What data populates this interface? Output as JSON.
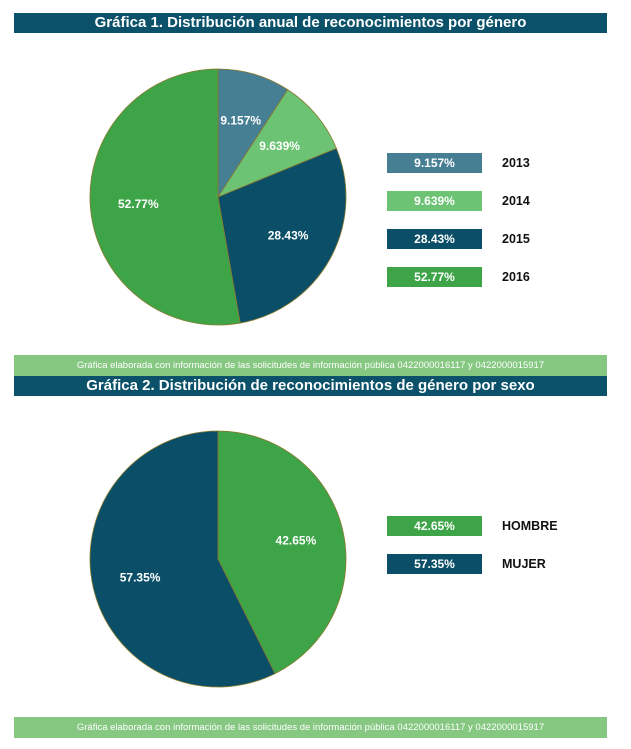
{
  "charts": {
    "chart1": {
      "title": "Gráfica 1. Distribución anual de reconocimientos por género",
      "note": "Gráfica elaborada con información de las solicitudes de información pública 0422000016117 y 0422000015917"
    },
    "chart2": {
      "title": "Gráfica 2. Distribución de reconocimientos de género por sexo",
      "note": "Gráfica elaborada con información de las solicitudes de información pública 0422000016117 y 0422000015917"
    }
  },
  "chart_data": [
    {
      "type": "pie",
      "title": "Gráfica 1. Distribución anual de reconocimientos por género",
      "categories": [
        "2013",
        "2014",
        "2015",
        "2016"
      ],
      "values": [
        9.157,
        9.639,
        28.43,
        52.77
      ],
      "labels": [
        "9.157%",
        "9.639%",
        "28.43%",
        "52.77%"
      ],
      "colors": [
        "#467f93",
        "#6cc373",
        "#0a4f67",
        "#3da447"
      ],
      "legend": "right"
    },
    {
      "type": "pie",
      "title": "Gráfica 2. Distribución de reconocimientos de género por sexo",
      "categories": [
        "HOMBRE",
        "MUJER"
      ],
      "values": [
        42.65,
        57.35
      ],
      "labels": [
        "42.65%",
        "57.35%"
      ],
      "colors": [
        "#3da447",
        "#0a4f67"
      ],
      "legend": "right"
    }
  ]
}
